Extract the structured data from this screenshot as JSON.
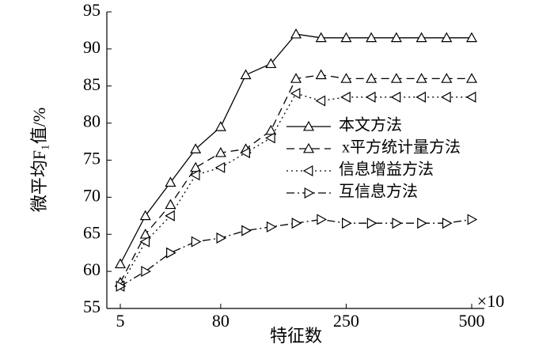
{
  "chart_data": {
    "type": "line",
    "y_label": "微平均F₁值/%",
    "x_label": "特征数",
    "x_multiplier": "×10",
    "categories": [
      "5",
      null,
      null,
      null,
      "80",
      null,
      null,
      null,
      null,
      "250",
      null,
      null,
      null,
      null,
      "500"
    ],
    "ylim": [
      55,
      95
    ],
    "yticks": [
      55,
      60,
      65,
      70,
      75,
      80,
      85,
      90,
      95
    ],
    "series": [
      {
        "name": "本文方法",
        "color": "#000000",
        "dash": "solid",
        "marker": "triangle-up",
        "values": [
          61,
          67.5,
          72,
          76.5,
          79.5,
          86.5,
          88,
          92,
          91.5,
          91.5,
          91.5,
          91.5,
          91.5,
          91.5,
          91.5
        ]
      },
      {
        "name": "x平方统计量方法",
        "color": "#000000",
        "dash": "dashed",
        "marker": "triangle-up",
        "values": [
          58.5,
          65,
          69,
          74,
          76,
          76.5,
          79,
          86,
          86.5,
          86,
          86,
          86,
          86,
          86,
          86
        ]
      },
      {
        "name": "信息增益方法",
        "color": "#000000",
        "dash": "dotted",
        "marker": "triangle-left",
        "values": [
          58,
          64,
          67.5,
          73,
          74,
          76,
          78,
          84,
          83,
          83.5,
          83.5,
          83.5,
          83.5,
          83.5,
          83.5
        ]
      },
      {
        "name": "互信息方法",
        "color": "#000000",
        "dash": "dashdot",
        "marker": "triangle-right",
        "values": [
          58,
          60,
          62.5,
          64,
          64.5,
          65.5,
          66,
          66.5,
          67,
          66.5,
          66.5,
          66.5,
          66.5,
          66.5,
          67
        ]
      }
    ]
  }
}
